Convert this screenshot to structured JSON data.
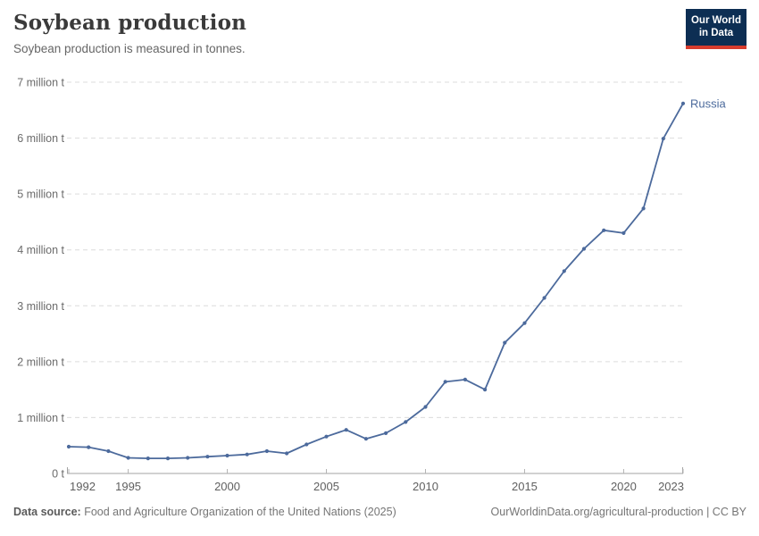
{
  "header": {
    "title": "Soybean production",
    "subtitle": "Soybean production is measured in tonnes."
  },
  "logo": {
    "line1": "Our World",
    "line2": "in Data",
    "bg_color": "#0d2e53",
    "accent_color": "#d73c2d"
  },
  "chart_data": {
    "type": "line",
    "title": "Soybean production",
    "unit": "tonnes",
    "xlabel": "",
    "ylabel": "",
    "ylim": [
      0,
      7000000
    ],
    "grid": "horizontal-dashed",
    "legend_position": "end-of-line-label",
    "xticks": [
      1992,
      1995,
      2000,
      2005,
      2010,
      2015,
      2020,
      2023
    ],
    "ytick_labels": [
      "0 t",
      "1 million t",
      "2 million t",
      "3 million t",
      "4 million t",
      "5 million t",
      "6 million t",
      "7 million t"
    ],
    "series": [
      {
        "name": "Russia",
        "color": "#4c6a9c",
        "x": [
          1992,
          1993,
          1994,
          1995,
          1996,
          1997,
          1998,
          1999,
          2000,
          2001,
          2002,
          2003,
          2004,
          2005,
          2006,
          2007,
          2008,
          2009,
          2010,
          2011,
          2012,
          2013,
          2014,
          2015,
          2016,
          2017,
          2018,
          2019,
          2020,
          2021,
          2022,
          2023
        ],
        "values": [
          480000,
          470000,
          400000,
          280000,
          270000,
          270000,
          280000,
          300000,
          320000,
          340000,
          400000,
          360000,
          520000,
          660000,
          780000,
          620000,
          720000,
          920000,
          1190000,
          1640000,
          1680000,
          1500000,
          2340000,
          2690000,
          3140000,
          3620000,
          4020000,
          4350000,
          4300000,
          4740000,
          5990000,
          6620000
        ]
      }
    ]
  },
  "footer": {
    "source_label": "Data source:",
    "source_text": "Food and Agriculture Organization of the United Nations (2025)",
    "license_text": "OurWorldinData.org/agricultural-production | CC BY"
  }
}
